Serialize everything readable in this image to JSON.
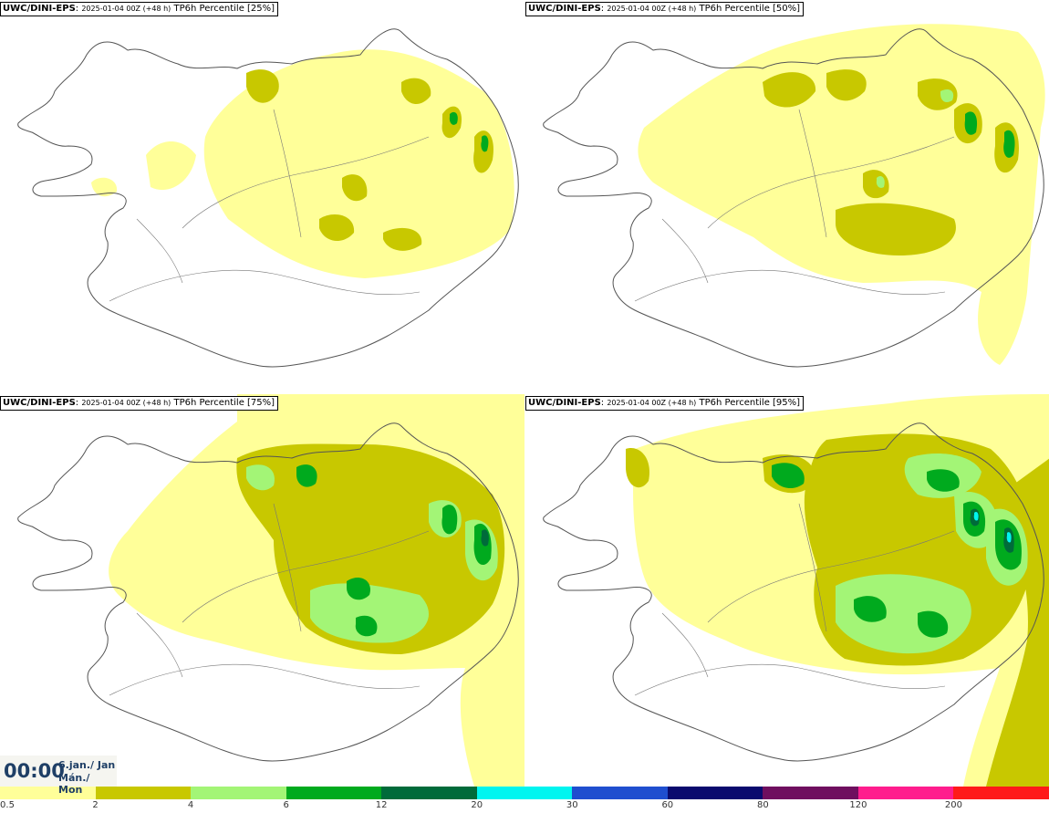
{
  "panels": [
    {
      "model": "UWC/DINI-EPS",
      "run": "2025-01-04 00Z (+48 h)",
      "field": "TP6h Percentile [25%]"
    },
    {
      "model": "UWC/DINI-EPS",
      "run": "2025-01-04 00Z (+48 h)",
      "field": "TP6h Percentile [50%]"
    },
    {
      "model": "UWC/DINI-EPS",
      "run": "2025-01-04 00Z (+48 h)",
      "field": "TP6h Percentile [75%]"
    },
    {
      "model": "UWC/DINI-EPS",
      "run": "2025-01-04 00Z (+48 h)",
      "field": "TP6h Percentile [95%]"
    }
  ],
  "valid_time": {
    "clock": "00:00",
    "date_line1": "6.jan./ Jan",
    "date_line2": "Mán./ Mon"
  },
  "colorbar": {
    "labels": [
      "0.5",
      "2",
      "4",
      "6",
      "12",
      "20",
      "30",
      "60",
      "80",
      "120",
      "200"
    ],
    "colors": [
      "#ffff99",
      "#c8c800",
      "#a3f576",
      "#00aa1e",
      "#006b3a",
      "#00f5f0",
      "#1f4ecf",
      "#0a0a6e",
      "#6f0f5f",
      "#ff1d8d",
      "#ff1a1a"
    ]
  },
  "legend_colors": {
    "light_yellow": "#ffff99",
    "olive": "#c8c800",
    "light_green": "#a3f576",
    "green": "#00aa1e",
    "dark_green": "#006b3a",
    "cyan": "#00f5f0"
  }
}
